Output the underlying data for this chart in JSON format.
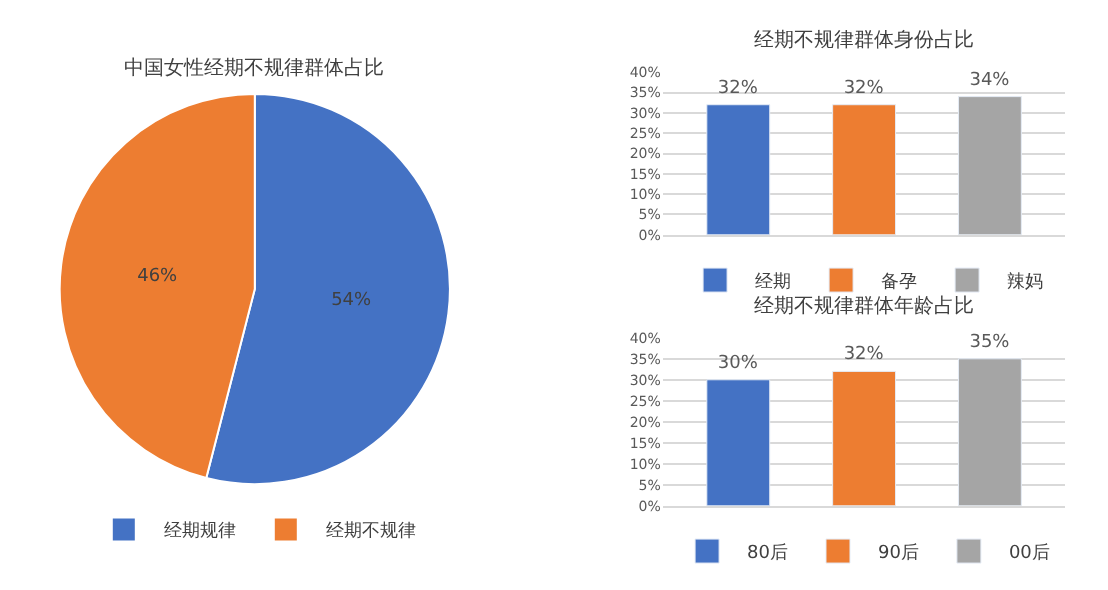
{
  "chart_data": [
    {
      "type": "pie",
      "title": "中国女性经期不规律群体占比",
      "categories": [
        "经期规律",
        "经期不规律"
      ],
      "values": [
        54,
        46
      ],
      "colors": [
        "#4472c4",
        "#ed7d31"
      ],
      "value_labels": [
        "54%",
        "46%"
      ],
      "legend": "bottom"
    },
    {
      "type": "bar",
      "title": "经期不规律群体身份占比",
      "categories": [
        null,
        null,
        null
      ],
      "series": [
        {
          "name": "经期",
          "color": "#4472c4",
          "values": [
            32,
            null,
            null
          ],
          "value_labels": [
            "32%",
            null,
            null
          ]
        },
        {
          "name": "备孕",
          "color": "#ed7d31",
          "values": [
            null,
            32,
            null
          ],
          "value_labels": [
            null,
            "32%",
            null
          ]
        },
        {
          "name": "辣妈",
          "color": "#a5a5a5",
          "values": [
            null,
            null,
            34
          ],
          "value_labels": [
            null,
            null,
            "34%"
          ]
        }
      ],
      "ylim": [
        0,
        40
      ],
      "yticks": [
        {
          "value": 0,
          "label": "0%"
        },
        {
          "value": 5,
          "label": "5%"
        },
        {
          "value": 10,
          "label": "10%"
        },
        {
          "value": 15,
          "label": "15%"
        },
        {
          "value": 20,
          "label": "20%"
        },
        {
          "value": 25,
          "label": "25%"
        },
        {
          "value": 30,
          "label": "30%"
        },
        {
          "value": 35,
          "label": "35%"
        },
        {
          "value": 40,
          "label": "40%"
        }
      ],
      "grid": "y",
      "legend": "bottom"
    },
    {
      "type": "bar",
      "title": "经期不规律群体年龄占比",
      "categories": [
        null,
        null,
        null
      ],
      "series": [
        {
          "name": "80后",
          "color": "#4472c4",
          "values": [
            30,
            null,
            null
          ],
          "value_labels": [
            "30%",
            null,
            null
          ]
        },
        {
          "name": "90后",
          "color": "#ed7d31",
          "values": [
            null,
            32,
            null
          ],
          "value_labels": [
            null,
            "32%",
            null
          ]
        },
        {
          "name": "00后",
          "color": "#a5a5a5",
          "values": [
            null,
            null,
            35
          ],
          "value_labels": [
            null,
            null,
            "35%"
          ]
        }
      ],
      "ylim": [
        0,
        40
      ],
      "yticks": [
        {
          "value": 0,
          "label": "0%"
        },
        {
          "value": 5,
          "label": "5%"
        },
        {
          "value": 10,
          "label": "10%"
        },
        {
          "value": 15,
          "label": "15%"
        },
        {
          "value": 20,
          "label": "20%"
        },
        {
          "value": 25,
          "label": "25%"
        },
        {
          "value": 30,
          "label": "30%"
        },
        {
          "value": 35,
          "label": "35%"
        },
        {
          "value": 40,
          "label": "40%"
        }
      ],
      "grid": "y",
      "legend": "bottom"
    }
  ]
}
